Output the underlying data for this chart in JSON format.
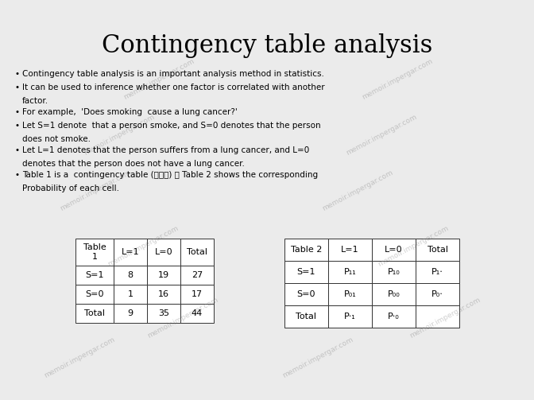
{
  "title": "Contingency table analysis",
  "background_color": "#ebebeb",
  "bullet_points": [
    "Contingency table analysis is an important analysis method in statistics.",
    "It can be used to inference whether one factor is correlated with another\nfactor.",
    "For example,  'Does smoking  cause a lung cancer?'",
    "Let S=1 denote  that a person smoke, and S=0 denotes that the person\ndoes not smoke.",
    "Let L=1 denotes that the person suffers from a lung cancer, and L=0\ndenotes that the person does not have a lung cancer.",
    "Table 1 is a  contingency table (列联表) ， Table 2 shows the corresponding\nProbability of each cell."
  ],
  "table1_header": [
    "Table\n1",
    "L=1",
    "L=0",
    "Total"
  ],
  "table1_rows": [
    [
      "S=1",
      "8",
      "19",
      "27"
    ],
    [
      "S=0",
      "1",
      "16",
      "17"
    ],
    [
      "Total",
      "9",
      "35",
      "44"
    ]
  ],
  "table2_header": [
    "Table 2",
    "L=1",
    "L=0",
    "Total"
  ],
  "table2_rows": [
    [
      "S=1",
      "P₁₁",
      "P₁₀",
      "P₁⋅"
    ],
    [
      "S=0",
      "P₀₁",
      "P₀₀",
      "P₀⋅"
    ],
    [
      "Total",
      "P⋅₁",
      "P⋅₀",
      ""
    ]
  ],
  "title_fontsize": 22,
  "bullet_fontsize": 7.5,
  "table_fontsize": 8
}
